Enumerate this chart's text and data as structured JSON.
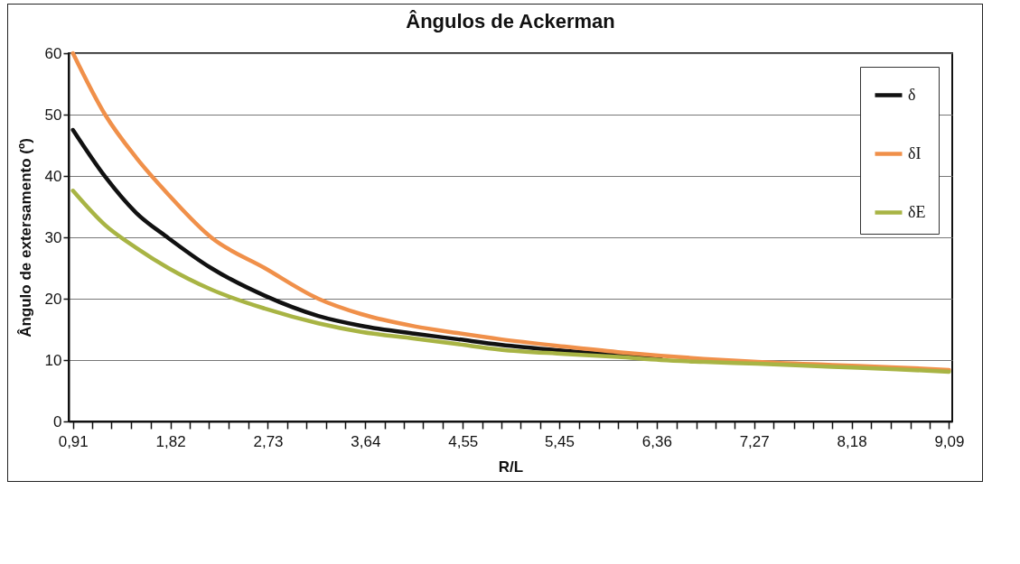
{
  "chart_data": {
    "type": "line",
    "title": "Ângulos de Ackerman",
    "xlabel": "R/L",
    "ylabel": "Ângulo de extersamento (º)",
    "x": [
      0.91,
      1.21,
      1.5,
      1.8,
      2.2,
      2.7,
      3.2,
      3.6,
      4.1,
      4.5,
      4.9,
      5.5,
      6.0,
      6.4,
      6.8,
      7.3,
      8.0,
      8.6,
      9.09
    ],
    "series": [
      {
        "name": "δ",
        "color": "#111111",
        "values": [
          47.5,
          39.9,
          34,
          29.9,
          25,
          20.5,
          17.2,
          15.6,
          14.3,
          13.4,
          12.5,
          11.5,
          10.8,
          10.2,
          null,
          null,
          null,
          null,
          null
        ]
      },
      {
        "name": "δI",
        "color": "#f0904a",
        "values": [
          60,
          50,
          43,
          37,
          30,
          25,
          20,
          17.5,
          15.5,
          14.4,
          13.4,
          12.2,
          11.3,
          10.7,
          10.2,
          9.7,
          9.2,
          8.8,
          8.4
        ]
      },
      {
        "name": "δE",
        "color": "#a8b444",
        "values": [
          37.6,
          32,
          28.3,
          25,
          21.5,
          18.4,
          16,
          14.6,
          13.5,
          12.6,
          11.7,
          11.0,
          10.5,
          10.0,
          9.7,
          9.4,
          8.9,
          8.5,
          8.1
        ]
      }
    ],
    "xlim": [
      0.87,
      9.12
    ],
    "xticks": [
      {
        "value": 0.91,
        "label": "0,91"
      },
      {
        "value": 1.09,
        "label": null
      },
      {
        "value": 1.27,
        "label": null
      },
      {
        "value": 1.45,
        "label": null
      },
      {
        "value": 1.64,
        "label": null
      },
      {
        "value": 1.82,
        "label": "1,82"
      },
      {
        "value": 2.0,
        "label": null
      },
      {
        "value": 2.18,
        "label": null
      },
      {
        "value": 2.36,
        "label": null
      },
      {
        "value": 2.55,
        "label": null
      },
      {
        "value": 2.73,
        "label": "2,73"
      },
      {
        "value": 2.91,
        "label": null
      },
      {
        "value": 3.09,
        "label": null
      },
      {
        "value": 3.27,
        "label": null
      },
      {
        "value": 3.45,
        "label": null
      },
      {
        "value": 3.64,
        "label": "3,64"
      },
      {
        "value": 3.82,
        "label": null
      },
      {
        "value": 4.0,
        "label": null
      },
      {
        "value": 4.18,
        "label": null
      },
      {
        "value": 4.36,
        "label": null
      },
      {
        "value": 4.55,
        "label": "4,55"
      },
      {
        "value": 4.73,
        "label": null
      },
      {
        "value": 4.91,
        "label": null
      },
      {
        "value": 5.09,
        "label": null
      },
      {
        "value": 5.27,
        "label": null
      },
      {
        "value": 5.45,
        "label": "5,45"
      },
      {
        "value": 5.64,
        "label": null
      },
      {
        "value": 5.82,
        "label": null
      },
      {
        "value": 6.0,
        "label": null
      },
      {
        "value": 6.18,
        "label": null
      },
      {
        "value": 6.36,
        "label": "6,36"
      },
      {
        "value": 6.55,
        "label": null
      },
      {
        "value": 6.73,
        "label": null
      },
      {
        "value": 6.91,
        "label": null
      },
      {
        "value": 7.09,
        "label": null
      },
      {
        "value": 7.27,
        "label": "7,27"
      },
      {
        "value": 7.45,
        "label": null
      },
      {
        "value": 7.64,
        "label": null
      },
      {
        "value": 7.82,
        "label": null
      },
      {
        "value": 8.0,
        "label": null
      },
      {
        "value": 8.18,
        "label": "8,18"
      },
      {
        "value": 8.36,
        "label": null
      },
      {
        "value": 8.55,
        "label": null
      },
      {
        "value": 8.73,
        "label": null
      },
      {
        "value": 8.91,
        "label": null
      },
      {
        "value": 9.09,
        "label": "9,09"
      }
    ],
    "ylim": [
      0,
      60
    ],
    "yticks": [
      0,
      10,
      20,
      30,
      40,
      50,
      60
    ],
    "grid": "y",
    "legend": "top right"
  }
}
